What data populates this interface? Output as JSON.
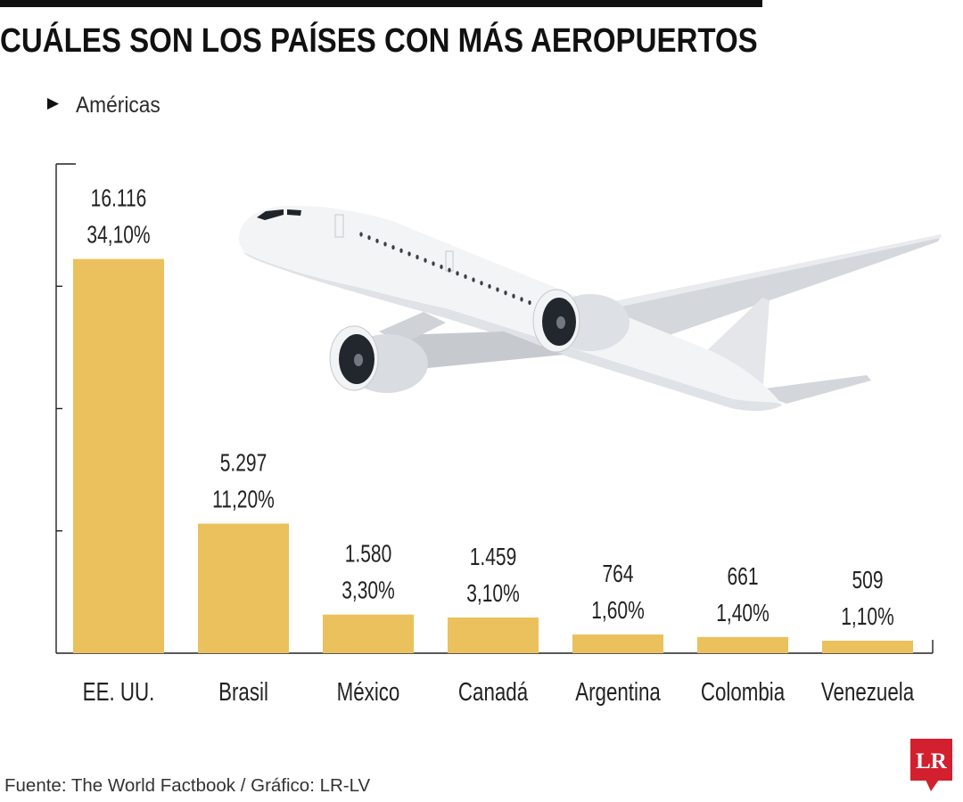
{
  "chart_data": {
    "type": "bar",
    "title": "CUÁLES SON LOS PAÍSES CON MÁS AEROPUERTOS",
    "subtitle": "Américas",
    "categories": [
      "EE. UU.",
      "Brasil",
      "México",
      "Canadá",
      "Argentina",
      "Colombia",
      "Venezuela"
    ],
    "values": [
      16116,
      5297,
      1580,
      1459,
      764,
      661,
      509
    ],
    "value_labels": [
      "16.116",
      "5.297",
      "1.580",
      "1.459",
      "764",
      "661",
      "509"
    ],
    "percent_labels": [
      "34,10%",
      "11,20%",
      "3,30%",
      "3,10%",
      "1,60%",
      "1,40%",
      "1,10%"
    ],
    "xlabel": "",
    "ylabel": "",
    "ylim": [
      0,
      20000
    ],
    "yticks": [
      0,
      5000,
      10000,
      15000,
      20000
    ],
    "grid": false,
    "source": "Fuente: The World Factbook / Gráfico: LR-LV"
  },
  "icons": {
    "subtitle_marker": "triangle-right-icon"
  },
  "logo": {
    "text": "LR"
  },
  "colors": {
    "bar": "#EBC15D",
    "logo": "#D2202F",
    "text": "#111111"
  }
}
